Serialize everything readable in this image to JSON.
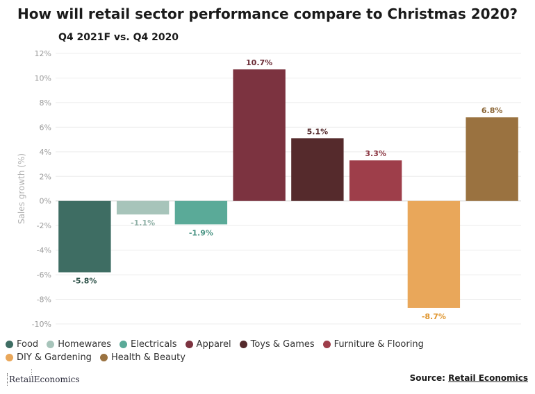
{
  "title": "How will retail sector performance compare to Christmas 2020?",
  "subtitle": "Q4 2021F vs. Q4 2020",
  "chart_data": {
    "type": "bar",
    "title": "How will retail sector performance compare to Christmas 2020?",
    "subtitle": "Q4 2021F vs. Q4 2020",
    "xlabel": "",
    "ylabel": "Sales growth (%)",
    "ylim": [
      -10,
      12
    ],
    "yticks": [
      12,
      10,
      8,
      6,
      4,
      2,
      0,
      -2,
      -4,
      -6,
      -8,
      -10
    ],
    "ytick_labels": [
      "12%",
      "10%",
      "8%",
      "6%",
      "4%",
      "2%",
      "0%",
      "-2%",
      "-4%",
      "-6%",
      "-8%",
      "-10%"
    ],
    "grid": true,
    "legend_position": "bottom",
    "categories": [
      "Food",
      "Homewares",
      "Electricals",
      "Apparel",
      "Toys & Games",
      "Furniture & Flooring",
      "DIY & Gardening",
      "Health & Beauty"
    ],
    "values": [
      -5.8,
      -1.1,
      -1.9,
      10.7,
      5.1,
      3.3,
      -8.7,
      6.8
    ],
    "data_labels": [
      "-5.8%",
      "-1.1%",
      "-1.9%",
      "10.7%",
      "5.1%",
      "3.3%",
      "-8.7%",
      "6.8%"
    ],
    "colors": [
      "#3e6d63",
      "#a7c4ba",
      "#5aaa98",
      "#7c3340",
      "#552a2c",
      "#9e3e4a",
      "#e9a75a",
      "#9a7240"
    ],
    "label_colors": [
      "#2e5249",
      "#8fb0a6",
      "#4a9484",
      "#6a2a34",
      "#552a2c",
      "#8a3440",
      "#e0962f",
      "#8a6434"
    ]
  },
  "footer": {
    "logo_text": "RetailEconomics",
    "source_prefix": "Source:",
    "source_link": "Retail Economics"
  }
}
